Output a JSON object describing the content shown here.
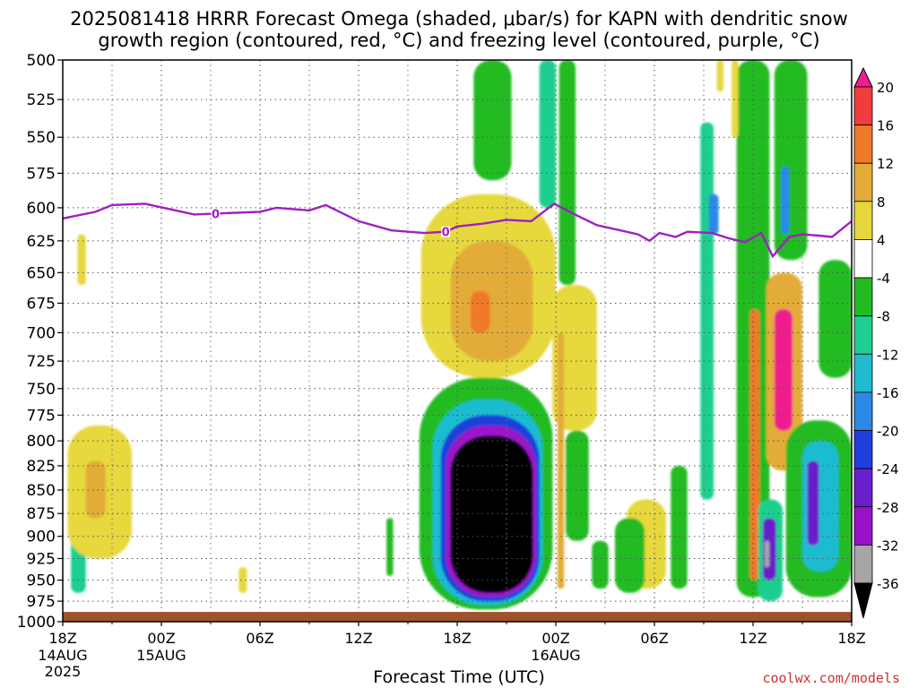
{
  "header": {
    "title_line1": "2025081418 HRRR Forecast Omega (shaded, μbar/s) for KAPN with dendritic snow",
    "title_line2": "growth region (contoured, red, °C) and freezing level (contoured, purple, °C)"
  },
  "footer": {
    "xlabel": "Forecast Time (UTC)",
    "credit": "coolwx.com/models"
  },
  "chart_data": {
    "type": "heatmap",
    "y_axis": {
      "label": "",
      "ticks": [
        500,
        525,
        550,
        575,
        600,
        625,
        650,
        675,
        700,
        725,
        750,
        775,
        800,
        825,
        850,
        875,
        900,
        925,
        950,
        975,
        1000
      ],
      "range": [
        500,
        1000
      ],
      "inverted": true,
      "scale": "log-pressure",
      "grid": true
    },
    "x_axis": {
      "label": "Forecast Time (UTC)",
      "ticks": [
        {
          "hour": 0,
          "label": "18Z",
          "sub": "14AUG",
          "sub2": "2025"
        },
        {
          "hour": 6,
          "label": "00Z",
          "sub": "15AUG",
          "sub2": ""
        },
        {
          "hour": 12,
          "label": "06Z",
          "sub": "",
          "sub2": ""
        },
        {
          "hour": 18,
          "label": "12Z",
          "sub": "",
          "sub2": ""
        },
        {
          "hour": 24,
          "label": "18Z",
          "sub": "",
          "sub2": ""
        },
        {
          "hour": 30,
          "label": "00Z",
          "sub": "16AUG",
          "sub2": ""
        },
        {
          "hour": 36,
          "label": "06Z",
          "sub": "",
          "sub2": ""
        },
        {
          "hour": 42,
          "label": "12Z",
          "sub": "",
          "sub2": ""
        },
        {
          "hour": 48,
          "label": "18Z",
          "sub": "",
          "sub2": ""
        }
      ],
      "range": [
        0,
        48
      ],
      "grid": true
    },
    "colorbar": {
      "labels": [
        "20",
        "16",
        "12",
        "8",
        "4",
        "-4",
        "-8",
        "-12",
        "-16",
        "-20",
        "-24",
        "-28",
        "-32",
        "-36"
      ],
      "bins": [
        {
          "lo": 20,
          "hi": 24,
          "color": "#ee1f8c"
        },
        {
          "lo": 16,
          "hi": 20,
          "color": "#f03c3c"
        },
        {
          "lo": 12,
          "hi": 16,
          "color": "#ee7a2a"
        },
        {
          "lo": 8,
          "hi": 12,
          "color": "#e3ac38"
        },
        {
          "lo": 4,
          "hi": 8,
          "color": "#e6d83c"
        },
        {
          "lo": -4,
          "hi": 4,
          "color": "#ffffff"
        },
        {
          "lo": -8,
          "hi": -4,
          "color": "#22bb22"
        },
        {
          "lo": -12,
          "hi": -8,
          "color": "#1fcf8f"
        },
        {
          "lo": -16,
          "hi": -12,
          "color": "#1fbcd0"
        },
        {
          "lo": -20,
          "hi": -16,
          "color": "#2a8ae6"
        },
        {
          "lo": -24,
          "hi": -20,
          "color": "#1f3fdc"
        },
        {
          "lo": -28,
          "hi": -24,
          "color": "#6a1fcc"
        },
        {
          "lo": -32,
          "hi": -28,
          "color": "#9a12c8"
        },
        {
          "lo": -36,
          "hi": -32,
          "color": "#a6a6a6"
        },
        {
          "lo": -40,
          "hi": -36,
          "color": "#000000"
        }
      ]
    },
    "omega_features": [
      {
        "hour_start": 0.9,
        "hour_end": 1.4,
        "p_top": 620,
        "p_bottom": 660,
        "omega": 5
      },
      {
        "hour_start": 0.5,
        "hour_end": 1.4,
        "p_top": 895,
        "p_bottom": 965,
        "omega": -10
      },
      {
        "hour_start": 0.3,
        "hour_end": 4.2,
        "p_top": 785,
        "p_bottom": 925,
        "omega": 6
      },
      {
        "hour_start": 1.4,
        "hour_end": 2.6,
        "p_top": 820,
        "p_bottom": 880,
        "omega": 9
      },
      {
        "hour_start": 10.7,
        "hour_end": 11.2,
        "p_top": 935,
        "p_bottom": 965,
        "omega": 5
      },
      {
        "hour_start": 19.7,
        "hour_end": 20.1,
        "p_top": 880,
        "p_bottom": 945,
        "omega": -6
      },
      {
        "hour_start": 21.8,
        "hour_end": 30.0,
        "p_top": 590,
        "p_bottom": 740,
        "omega": 6
      },
      {
        "hour_start": 23.6,
        "hour_end": 28.6,
        "p_top": 625,
        "p_bottom": 725,
        "omega": 10
      },
      {
        "hour_start": 24.8,
        "hour_end": 26.0,
        "p_top": 665,
        "p_bottom": 700,
        "omega": 13
      },
      {
        "hour_start": 29.8,
        "hour_end": 32.5,
        "p_top": 660,
        "p_bottom": 790,
        "omega": 6
      },
      {
        "hour_start": 21.7,
        "hour_end": 29.8,
        "p_top": 740,
        "p_bottom": 985,
        "omega": -7
      },
      {
        "hour_start": 22.5,
        "hour_end": 29.2,
        "p_top": 760,
        "p_bottom": 980,
        "omega": -14
      },
      {
        "hour_start": 23.0,
        "hour_end": 29.0,
        "p_top": 775,
        "p_bottom": 975,
        "omega": -22
      },
      {
        "hour_start": 23.3,
        "hour_end": 28.8,
        "p_top": 785,
        "p_bottom": 970,
        "omega": -30
      },
      {
        "hour_start": 23.6,
        "hour_end": 28.6,
        "p_top": 795,
        "p_bottom": 965,
        "omega": -38
      },
      {
        "hour_start": 25.0,
        "hour_end": 27.3,
        "p_top": 500,
        "p_bottom": 580,
        "omega": -6
      },
      {
        "hour_start": 29.0,
        "hour_end": 30.0,
        "p_top": 500,
        "p_bottom": 600,
        "omega": -10
      },
      {
        "hour_start": 30.2,
        "hour_end": 31.2,
        "p_top": 500,
        "p_bottom": 660,
        "omega": -6
      },
      {
        "hour_start": 30.1,
        "hour_end": 30.5,
        "p_top": 700,
        "p_bottom": 960,
        "omega": 10
      },
      {
        "hour_start": 30.6,
        "hour_end": 32.0,
        "p_top": 790,
        "p_bottom": 905,
        "omega": -6
      },
      {
        "hour_start": 32.2,
        "hour_end": 33.2,
        "p_top": 905,
        "p_bottom": 960,
        "omega": -8
      },
      {
        "hour_start": 34.3,
        "hour_end": 36.7,
        "p_top": 860,
        "p_bottom": 960,
        "omega": 5
      },
      {
        "hour_start": 33.6,
        "hour_end": 35.4,
        "p_top": 880,
        "p_bottom": 965,
        "omega": -6
      },
      {
        "hour_start": 37.0,
        "hour_end": 38.0,
        "p_top": 825,
        "p_bottom": 960,
        "omega": -8
      },
      {
        "hour_start": 38.8,
        "hour_end": 39.6,
        "p_top": 540,
        "p_bottom": 860,
        "omega": -12
      },
      {
        "hour_start": 39.3,
        "hour_end": 39.9,
        "p_top": 590,
        "p_bottom": 620,
        "omega": -20
      },
      {
        "hour_start": 41.0,
        "hour_end": 43.0,
        "p_top": 500,
        "p_bottom": 970,
        "omega": -6
      },
      {
        "hour_start": 41.8,
        "hour_end": 42.4,
        "p_top": 680,
        "p_bottom": 950,
        "omega": 14
      },
      {
        "hour_start": 42.3,
        "hour_end": 43.8,
        "p_top": 860,
        "p_bottom": 975,
        "omega": -12
      },
      {
        "hour_start": 42.6,
        "hour_end": 43.4,
        "p_top": 880,
        "p_bottom": 950,
        "omega": -26
      },
      {
        "hour_start": 42.7,
        "hour_end": 43.0,
        "p_top": 905,
        "p_bottom": 935,
        "omega": -34
      },
      {
        "hour_start": 42.8,
        "hour_end": 45.0,
        "p_top": 650,
        "p_bottom": 830,
        "omega": 8
      },
      {
        "hour_start": 43.3,
        "hour_end": 44.4,
        "p_top": 680,
        "p_bottom": 790,
        "omega": 20
      },
      {
        "hour_start": 43.3,
        "hour_end": 45.3,
        "p_top": 500,
        "p_bottom": 640,
        "omega": -8
      },
      {
        "hour_start": 43.7,
        "hour_end": 44.2,
        "p_top": 570,
        "p_bottom": 620,
        "omega": -18
      },
      {
        "hour_start": 44.0,
        "hour_end": 48.0,
        "p_top": 780,
        "p_bottom": 970,
        "omega": -8
      },
      {
        "hour_start": 45.0,
        "hour_end": 47.2,
        "p_top": 800,
        "p_bottom": 940,
        "omega": -16
      },
      {
        "hour_start": 45.3,
        "hour_end": 46.0,
        "p_top": 820,
        "p_bottom": 910,
        "omega": -26
      },
      {
        "hour_start": 46.0,
        "hour_end": 48.0,
        "p_top": 640,
        "p_bottom": 740,
        "omega": -6
      },
      {
        "hour_start": 39.8,
        "hour_end": 40.2,
        "p_top": 500,
        "p_bottom": 520,
        "omega": 5
      },
      {
        "hour_start": 40.7,
        "hour_end": 41.1,
        "p_top": 500,
        "p_bottom": 550,
        "omega": 5
      }
    ],
    "freezing_level": {
      "label": "0",
      "points": [
        [
          0,
          608
        ],
        [
          2,
          603
        ],
        [
          3,
          598
        ],
        [
          5,
          597
        ],
        [
          8,
          605
        ],
        [
          12,
          603
        ],
        [
          13,
          600
        ],
        [
          15,
          602
        ],
        [
          16,
          598
        ],
        [
          18,
          610
        ],
        [
          20,
          617
        ],
        [
          22,
          619
        ],
        [
          23.3,
          618
        ],
        [
          24,
          614
        ],
        [
          25.5,
          612
        ],
        [
          27,
          609
        ],
        [
          28.5,
          610
        ],
        [
          29.9,
          597
        ],
        [
          31,
          604
        ],
        [
          32.5,
          613
        ],
        [
          35,
          620
        ],
        [
          35.7,
          625
        ],
        [
          36.3,
          619
        ],
        [
          37.3,
          622
        ],
        [
          38,
          618
        ],
        [
          39.5,
          619
        ],
        [
          40.5,
          623
        ],
        [
          41.5,
          626
        ],
        [
          42.5,
          619
        ],
        [
          43.2,
          637
        ],
        [
          44.2,
          622
        ],
        [
          45,
          620
        ],
        [
          46,
          621
        ],
        [
          46.8,
          622
        ],
        [
          48,
          610
        ]
      ],
      "label_positions": [
        9.3,
        23.3
      ]
    },
    "ground": {
      "pressure": 988
    }
  }
}
